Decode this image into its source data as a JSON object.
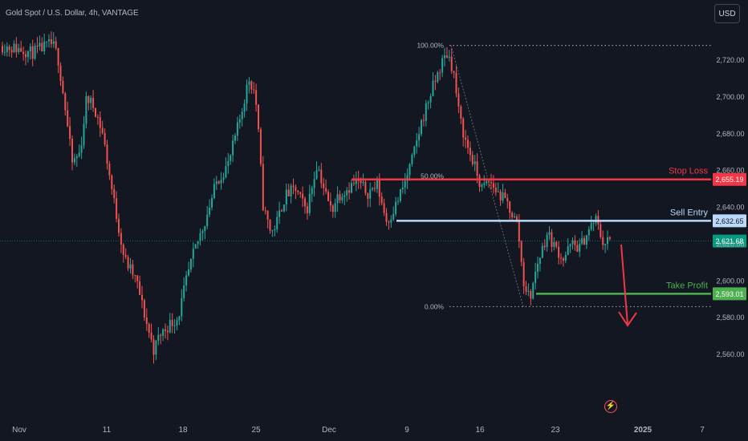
{
  "header": {
    "title": "Gold Spot / U.S. Dollar, 4h, VANTAGE",
    "currency_button": "USD"
  },
  "icons": {
    "bottom": "lightning-icon"
  },
  "colors": {
    "background": "#131722",
    "up": "#26a69a",
    "down": "#ef5350",
    "stop_loss": "#f23645",
    "sell_entry": "#bbd9fb",
    "take_profit": "#4caf50",
    "current_price": "#089981",
    "grid_text": "#b2b5be"
  },
  "chart_data": {
    "type": "candlestick",
    "symbol": "Gold Spot / U.S. Dollar",
    "interval": "4h",
    "exchange": "VANTAGE",
    "ylim": [
      2548,
      2732
    ],
    "y_ticks": [
      "2,560.00",
      "2,580.00",
      "2,600.00",
      "2,620.00",
      "2,640.00",
      "2,660.00",
      "2,680.00",
      "2,700.00",
      "2,720.00"
    ],
    "x_ticks": [
      "Nov",
      "11",
      "18",
      "25",
      "Dec",
      "9",
      "16",
      "23",
      "2025",
      "7"
    ],
    "price_path": [
      [
        0,
        2728
      ],
      [
        12,
        2727
      ],
      [
        25,
        2726
      ],
      [
        40,
        2724
      ],
      [
        55,
        2727
      ],
      [
        65,
        2729
      ],
      [
        72,
        2722
      ],
      [
        80,
        2698
      ],
      [
        90,
        2664
      ],
      [
        100,
        2670
      ],
      [
        108,
        2700
      ],
      [
        118,
        2694
      ],
      [
        128,
        2680
      ],
      [
        140,
        2648
      ],
      [
        155,
        2612
      ],
      [
        170,
        2600
      ],
      [
        182,
        2578
      ],
      [
        192,
        2562
      ],
      [
        198,
        2570
      ],
      [
        210,
        2576
      ],
      [
        222,
        2580
      ],
      [
        232,
        2600
      ],
      [
        242,
        2616
      ],
      [
        255,
        2632
      ],
      [
        270,
        2654
      ],
      [
        285,
        2664
      ],
      [
        300,
        2690
      ],
      [
        310,
        2710
      ],
      [
        318,
        2702
      ],
      [
        322,
        2680
      ],
      [
        328,
        2640
      ],
      [
        338,
        2626
      ],
      [
        345,
        2632
      ],
      [
        355,
        2646
      ],
      [
        368,
        2650
      ],
      [
        382,
        2638
      ],
      [
        395,
        2664
      ],
      [
        405,
        2648
      ],
      [
        413,
        2638
      ],
      [
        420,
        2646
      ],
      [
        432,
        2650
      ],
      [
        445,
        2654
      ],
      [
        458,
        2648
      ],
      [
        470,
        2652
      ],
      [
        482,
        2632
      ],
      [
        492,
        2640
      ],
      [
        505,
        2654
      ],
      [
        515,
        2668
      ],
      [
        525,
        2686
      ],
      [
        535,
        2700
      ],
      [
        545,
        2712
      ],
      [
        552,
        2720
      ],
      [
        558,
        2724
      ],
      [
        565,
        2714
      ],
      [
        572,
        2690
      ],
      [
        580,
        2676
      ],
      [
        590,
        2664
      ],
      [
        600,
        2650
      ],
      [
        610,
        2654
      ],
      [
        620,
        2648
      ],
      [
        632,
        2642
      ],
      [
        645,
        2630
      ],
      [
        652,
        2600
      ],
      [
        660,
        2590
      ],
      [
        670,
        2610
      ],
      [
        682,
        2626
      ],
      [
        692,
        2618
      ],
      [
        702,
        2612
      ],
      [
        712,
        2620
      ],
      [
        722,
        2618
      ],
      [
        732,
        2626
      ],
      [
        742,
        2634
      ],
      [
        752,
        2620
      ],
      [
        758,
        2622
      ],
      [
        762,
        2621.68
      ]
    ],
    "fibonacci": {
      "levels": [
        "100.00%",
        "50.00%",
        "0.00%"
      ],
      "high": 2728,
      "low": 2586
    },
    "lines": [
      {
        "label": "Stop Loss",
        "price_label": "2,655.19",
        "price": 2655.19,
        "color": "#f23645"
      },
      {
        "label": "Sell Entry",
        "price_label": "2,632.65",
        "price": 2632.65,
        "color": "#bbd9fb"
      },
      {
        "label": "Take Profit",
        "price_label": "2,593.01",
        "price": 2593.01,
        "color": "#4caf50"
      }
    ],
    "current_price": {
      "label": "2,621.68",
      "price": 2621.68
    },
    "grid": false,
    "legend": "top-left"
  }
}
